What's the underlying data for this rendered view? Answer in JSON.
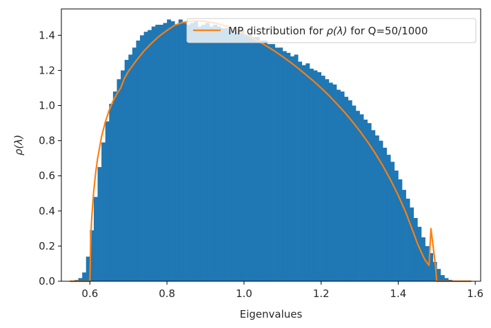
{
  "chart_data": {
    "type": "bar",
    "xlabel": "Eigenvalues",
    "ylabel": "ρ(λ)",
    "xlim": [
      0.526,
      1.614
    ],
    "ylim": [
      0.0,
      1.55
    ],
    "xticks": [
      0.6,
      0.8,
      1.0,
      1.2,
      1.4,
      1.6
    ],
    "xtick_labels": [
      "0.6",
      "0.8",
      "1.0",
      "1.2",
      "1.4",
      "1.6"
    ],
    "yticks": [
      0.0,
      0.2,
      0.4,
      0.6,
      0.8,
      1.0,
      1.2,
      1.4
    ],
    "ytick_labels": [
      "0.0",
      "0.2",
      "0.4",
      "0.6",
      "0.8",
      "1.0",
      "1.2",
      "1.4"
    ],
    "legend": {
      "position": "upper right",
      "entries": [
        {
          "label_prefix": "MP distribution for ",
          "label_math": "ρ(λ)",
          "label_suffix": " for Q=50/1000",
          "color": "#ff7f0e"
        }
      ]
    },
    "histogram": {
      "color": "#1f77b4",
      "bin_edges": [
        0.55,
        0.56,
        0.57,
        0.58,
        0.59,
        0.6,
        0.61,
        0.62,
        0.63,
        0.64,
        0.65,
        0.66,
        0.67,
        0.68,
        0.69,
        0.7,
        0.71,
        0.72,
        0.73,
        0.74,
        0.75,
        0.76,
        0.77,
        0.78,
        0.79,
        0.8,
        0.81,
        0.82,
        0.83,
        0.84,
        0.85,
        0.86,
        0.87,
        0.88,
        0.89,
        0.9,
        0.91,
        0.92,
        0.93,
        0.94,
        0.95,
        0.96,
        0.97,
        0.98,
        0.99,
        1.0,
        1.01,
        1.02,
        1.03,
        1.04,
        1.05,
        1.06,
        1.07,
        1.08,
        1.09,
        1.1,
        1.11,
        1.12,
        1.13,
        1.14,
        1.15,
        1.16,
        1.17,
        1.18,
        1.19,
        1.2,
        1.21,
        1.22,
        1.23,
        1.24,
        1.25,
        1.26,
        1.27,
        1.28,
        1.29,
        1.3,
        1.31,
        1.32,
        1.33,
        1.34,
        1.35,
        1.36,
        1.37,
        1.38,
        1.39,
        1.4,
        1.41,
        1.42,
        1.43,
        1.44,
        1.45,
        1.46,
        1.47,
        1.48,
        1.49,
        1.5,
        1.51,
        1.52,
        1.53,
        1.54,
        1.55,
        1.56,
        1.57,
        1.58,
        1.59
      ],
      "values": [
        0.003,
        0.007,
        0.018,
        0.05,
        0.14,
        0.29,
        0.48,
        0.65,
        0.79,
        0.91,
        1.01,
        1.08,
        1.15,
        1.2,
        1.26,
        1.29,
        1.33,
        1.37,
        1.4,
        1.42,
        1.43,
        1.45,
        1.46,
        1.46,
        1.47,
        1.49,
        1.48,
        1.46,
        1.49,
        1.47,
        1.46,
        1.47,
        1.48,
        1.45,
        1.46,
        1.47,
        1.45,
        1.46,
        1.45,
        1.44,
        1.44,
        1.43,
        1.44,
        1.42,
        1.43,
        1.4,
        1.41,
        1.39,
        1.39,
        1.37,
        1.37,
        1.35,
        1.35,
        1.33,
        1.33,
        1.31,
        1.3,
        1.28,
        1.29,
        1.25,
        1.23,
        1.24,
        1.21,
        1.2,
        1.19,
        1.17,
        1.15,
        1.13,
        1.12,
        1.09,
        1.08,
        1.05,
        1.03,
        1.0,
        0.97,
        0.95,
        0.92,
        0.9,
        0.86,
        0.83,
        0.8,
        0.76,
        0.72,
        0.68,
        0.63,
        0.58,
        0.52,
        0.47,
        0.42,
        0.36,
        0.31,
        0.25,
        0.2,
        0.16,
        0.11,
        0.07,
        0.035,
        0.018,
        0.008,
        0.004,
        0.002,
        0.001,
        0.0005,
        0.0002
      ]
    },
    "series": [
      {
        "color": "#ff7f0e",
        "x": [
          0.548,
          0.6,
          0.6025,
          0.605,
          0.61,
          0.615,
          0.62,
          0.63,
          0.64,
          0.65,
          0.66,
          0.67,
          0.68,
          0.69,
          0.7,
          0.72,
          0.74,
          0.76,
          0.78,
          0.8,
          0.82,
          0.84,
          0.86,
          0.88,
          0.9,
          0.92,
          0.94,
          0.96,
          0.98,
          1.0,
          1.02,
          1.04,
          1.06,
          1.08,
          1.1,
          1.12,
          1.14,
          1.16,
          1.18,
          1.2,
          1.22,
          1.24,
          1.26,
          1.28,
          1.3,
          1.32,
          1.34,
          1.36,
          1.38,
          1.4,
          1.42,
          1.44,
          1.45,
          1.46,
          1.47,
          1.48,
          1.485,
          1.49,
          1.495,
          1.4975,
          1.5,
          1.55,
          1.59
        ],
        "y": [
          0.0,
          0.0,
          0.263,
          0.37,
          0.515,
          0.618,
          0.699,
          0.82,
          0.907,
          0.973,
          1.025,
          1.067,
          1.1,
          1.157,
          1.195,
          1.255,
          1.31,
          1.355,
          1.395,
          1.428,
          1.457,
          1.472,
          1.48,
          1.482,
          1.479,
          1.472,
          1.461,
          1.447,
          1.429,
          1.41,
          1.387,
          1.363,
          1.337,
          1.309,
          1.279,
          1.247,
          1.213,
          1.177,
          1.14,
          1.1,
          1.058,
          1.012,
          0.964,
          0.912,
          0.856,
          0.796,
          0.73,
          0.658,
          0.578,
          0.49,
          0.39,
          0.275,
          0.215,
          0.165,
          0.12,
          0.09,
          0.3,
          0.21,
          0.12,
          0.07,
          0.0,
          0.0,
          0.0
        ]
      }
    ]
  }
}
